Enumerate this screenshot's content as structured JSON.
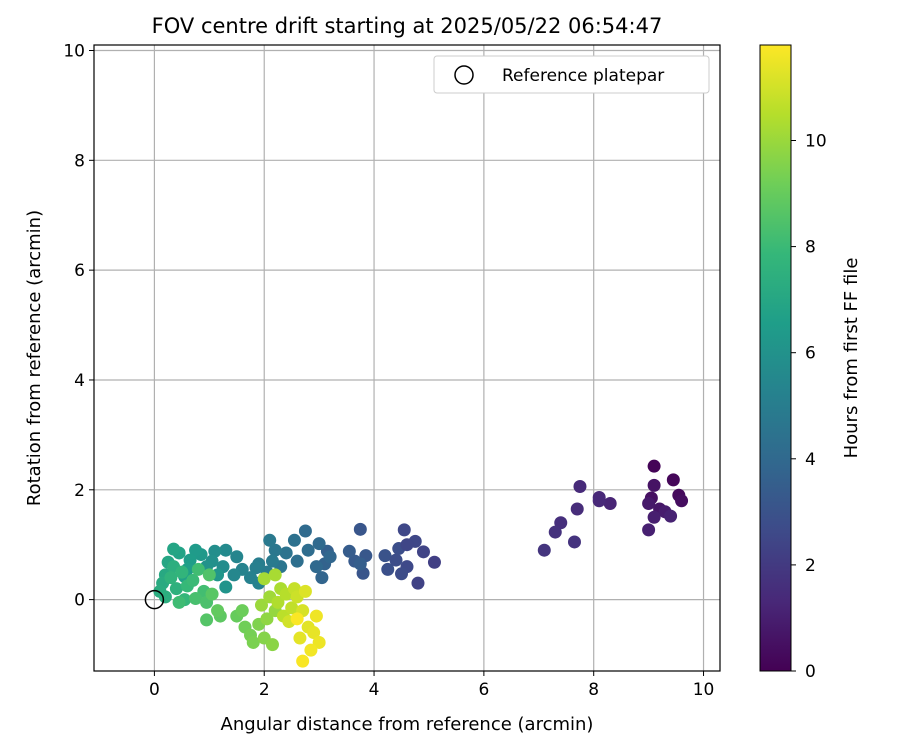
{
  "chart_data": {
    "type": "scatter",
    "title": "FOV centre drift starting at 2025/05/22 06:54:47",
    "xlabel": "Angular distance from reference (arcmin)",
    "ylabel": "Rotation from reference (arcmin)",
    "xlim": [
      -1.1,
      10.3
    ],
    "ylim": [
      -1.3,
      10.1
    ],
    "xticks": [
      "0",
      "2",
      "4",
      "6",
      "8",
      "10"
    ],
    "yticks": [
      "0",
      "2",
      "4",
      "6",
      "8",
      "10"
    ],
    "grid": true,
    "legend": {
      "label": "Reference platepar",
      "placement": "top-right",
      "marker": "open-circle"
    },
    "reference_point": {
      "x": 0,
      "y": 0
    },
    "colorbar": {
      "label": "Hours from first FF file",
      "range": [
        0,
        11.8
      ],
      "ticks": [
        "0",
        "2",
        "4",
        "6",
        "8",
        "10"
      ],
      "colormap": "viridis",
      "colors": [
        "#440154",
        "#482878",
        "#3e4a89",
        "#31688e",
        "#26828e",
        "#1f9e89",
        "#35b779",
        "#6ece58",
        "#b5de2b",
        "#fde725"
      ]
    },
    "series": [
      {
        "points": [
          [
            9.1,
            2.43,
            0.1
          ],
          [
            9.45,
            2.18,
            0.2
          ],
          [
            9.55,
            1.9,
            0.3
          ],
          [
            9.6,
            1.8,
            0.4
          ],
          [
            9.05,
            1.85,
            0.5
          ],
          [
            9.1,
            2.08,
            0.6
          ],
          [
            9.2,
            1.65,
            0.7
          ],
          [
            9.0,
            1.75,
            0.8
          ],
          [
            9.3,
            1.6,
            0.9
          ],
          [
            9.1,
            1.5,
            1.0
          ],
          [
            9.0,
            1.27,
            1.05
          ],
          [
            9.4,
            1.52,
            1.1
          ],
          [
            8.3,
            1.75,
            1.2
          ],
          [
            8.1,
            1.86,
            1.3
          ],
          [
            8.1,
            1.8,
            1.35
          ],
          [
            7.75,
            2.06,
            1.4
          ],
          [
            7.7,
            1.65,
            1.5
          ],
          [
            7.4,
            1.4,
            1.6
          ],
          [
            7.3,
            1.23,
            1.7
          ],
          [
            7.65,
            1.05,
            1.75
          ],
          [
            7.1,
            0.9,
            1.8
          ],
          [
            5.1,
            0.68,
            2.2
          ],
          [
            4.8,
            0.3,
            2.3
          ],
          [
            4.9,
            0.87,
            2.4
          ],
          [
            4.75,
            1.06,
            2.5
          ],
          [
            4.55,
            1.27,
            2.55
          ],
          [
            4.6,
            0.6,
            2.6
          ],
          [
            4.5,
            0.47,
            2.7
          ],
          [
            4.45,
            0.93,
            2.8
          ],
          [
            4.25,
            0.55,
            2.9
          ],
          [
            4.2,
            0.8,
            3.0
          ],
          [
            3.8,
            0.48,
            3.1
          ],
          [
            3.75,
            1.28,
            3.15
          ],
          [
            3.85,
            0.8,
            3.2
          ],
          [
            3.65,
            0.7,
            3.3
          ],
          [
            3.55,
            0.88,
            3.4
          ],
          [
            3.75,
            0.65,
            3.5
          ],
          [
            4.6,
            1.0,
            2.45
          ],
          [
            4.4,
            0.72,
            2.75
          ],
          [
            3.15,
            0.88,
            3.6
          ],
          [
            3.1,
            0.65,
            3.7
          ],
          [
            3.05,
            0.4,
            3.8
          ],
          [
            3.2,
            0.78,
            3.9
          ],
          [
            2.95,
            0.6,
            4.0
          ],
          [
            3.0,
            1.02,
            4.05
          ],
          [
            2.75,
            1.25,
            4.1
          ],
          [
            2.8,
            0.9,
            4.2
          ],
          [
            2.6,
            0.7,
            4.3
          ],
          [
            2.55,
            1.08,
            4.4
          ],
          [
            2.4,
            0.85,
            4.5
          ],
          [
            2.3,
            0.6,
            4.6
          ],
          [
            2.2,
            0.9,
            4.7
          ],
          [
            2.1,
            1.08,
            4.8
          ],
          [
            2.15,
            0.7,
            4.85
          ],
          [
            2.05,
            0.5,
            4.9
          ],
          [
            1.9,
            0.65,
            5.0
          ],
          [
            1.85,
            0.58,
            5.1
          ],
          [
            1.75,
            0.4,
            5.2
          ],
          [
            1.9,
            0.3,
            5.25
          ],
          [
            1.6,
            0.55,
            5.3
          ],
          [
            1.5,
            0.78,
            5.4
          ],
          [
            1.45,
            0.45,
            5.5
          ],
          [
            1.3,
            0.9,
            5.6
          ],
          [
            1.25,
            0.6,
            5.7
          ],
          [
            1.1,
            0.88,
            5.8
          ],
          [
            1.05,
            0.7,
            5.9
          ],
          [
            0.95,
            0.6,
            6.0
          ],
          [
            1.3,
            0.23,
            6.1
          ],
          [
            1.15,
            0.45,
            6.2
          ],
          [
            0.85,
            0.82,
            6.3
          ],
          [
            0.75,
            0.9,
            6.4
          ],
          [
            0.65,
            0.72,
            6.5
          ],
          [
            0.6,
            0.55,
            6.6
          ],
          [
            0.55,
            0.42,
            6.7
          ],
          [
            0.45,
            0.85,
            6.8
          ],
          [
            0.35,
            0.92,
            6.9
          ],
          [
            0.25,
            0.68,
            7.0
          ],
          [
            0.2,
            0.45,
            7.1
          ],
          [
            0.15,
            0.3,
            7.2
          ],
          [
            0.1,
            0.15,
            7.3
          ],
          [
            0.2,
            0.05,
            7.35
          ],
          [
            0.35,
            0.6,
            7.4
          ],
          [
            0.4,
            0.2,
            7.5
          ],
          [
            0.3,
            0.4,
            7.6
          ],
          [
            0.5,
            0.5,
            7.7
          ],
          [
            0.55,
            0.0,
            7.8
          ],
          [
            0.6,
            0.25,
            7.9
          ],
          [
            0.7,
            0.35,
            8.0
          ],
          [
            0.45,
            -0.05,
            8.1
          ],
          [
            0.8,
            0.55,
            8.15
          ],
          [
            0.9,
            0.15,
            8.2
          ],
          [
            0.75,
            0.02,
            8.3
          ],
          [
            0.95,
            -0.05,
            8.4
          ],
          [
            1.0,
            0.45,
            8.5
          ],
          [
            0.95,
            -0.37,
            8.6
          ],
          [
            1.05,
            0.1,
            8.7
          ],
          [
            1.2,
            -0.3,
            8.8
          ],
          [
            1.15,
            -0.2,
            8.9
          ],
          [
            1.5,
            -0.3,
            9.0
          ],
          [
            1.6,
            -0.2,
            9.1
          ],
          [
            1.65,
            -0.5,
            9.2
          ],
          [
            1.75,
            -0.65,
            9.3
          ],
          [
            1.8,
            -0.78,
            9.4
          ],
          [
            1.9,
            -0.45,
            9.5
          ],
          [
            2.0,
            -0.7,
            9.6
          ],
          [
            2.15,
            -0.82,
            9.7
          ],
          [
            2.05,
            -0.35,
            9.8
          ],
          [
            2.2,
            -0.2,
            9.9
          ],
          [
            1.95,
            -0.1,
            10.0
          ],
          [
            2.1,
            0.05,
            10.1
          ],
          [
            2.0,
            0.38,
            10.2
          ],
          [
            2.2,
            0.45,
            10.25
          ],
          [
            2.3,
            0.2,
            10.3
          ],
          [
            2.25,
            -0.05,
            10.4
          ],
          [
            2.4,
            0.1,
            10.5
          ],
          [
            2.35,
            -0.3,
            10.6
          ],
          [
            2.5,
            -0.15,
            10.7
          ],
          [
            2.55,
            0.2,
            10.8
          ],
          [
            2.6,
            0.05,
            10.9
          ],
          [
            2.45,
            -0.4,
            11.0
          ],
          [
            2.7,
            -0.2,
            11.1
          ],
          [
            2.75,
            0.15,
            11.2
          ],
          [
            2.8,
            -0.5,
            11.3
          ],
          [
            2.65,
            -0.7,
            11.35
          ],
          [
            2.9,
            -0.6,
            11.4
          ],
          [
            3.0,
            -0.78,
            11.5
          ],
          [
            2.95,
            -0.3,
            11.55
          ],
          [
            2.85,
            -0.92,
            11.6
          ],
          [
            2.7,
            -1.12,
            11.7
          ],
          [
            2.6,
            -0.35,
            11.75
          ]
        ]
      }
    ]
  }
}
